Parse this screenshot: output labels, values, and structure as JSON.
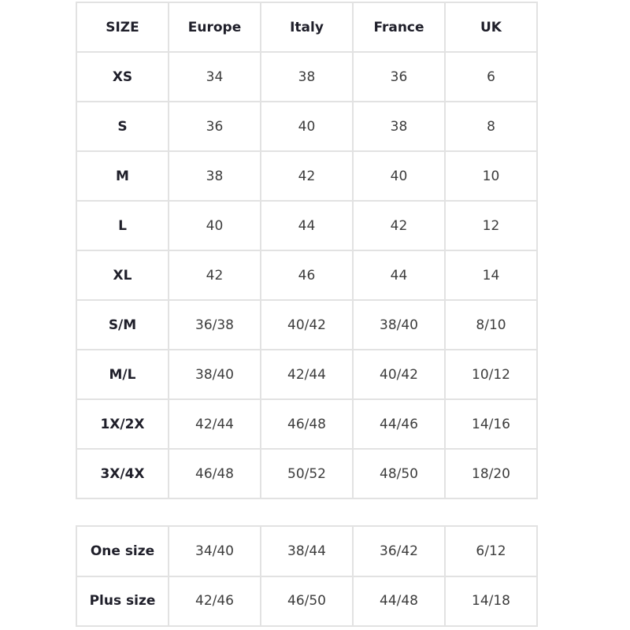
{
  "columns": [
    "SIZE",
    "Europe",
    "Italy",
    "France",
    "UK"
  ],
  "rows": [
    [
      "XS",
      "34",
      "38",
      "36",
      "6"
    ],
    [
      "S",
      "36",
      "40",
      "38",
      "8"
    ],
    [
      "M",
      "38",
      "42",
      "40",
      "10"
    ],
    [
      "L",
      "40",
      "44",
      "42",
      "12"
    ],
    [
      "XL",
      "42",
      "46",
      "44",
      "14"
    ],
    [
      "S/M",
      "36/38",
      "40/42",
      "38/40",
      "8/10"
    ],
    [
      "M/L",
      "38/40",
      "42/44",
      "40/42",
      "10/12"
    ],
    [
      "1X/2X",
      "42/44",
      "46/48",
      "44/46",
      "14/16"
    ],
    [
      "3X/4X",
      "46/48",
      "50/52",
      "48/50",
      "18/20"
    ]
  ],
  "extra_rows": [
    [
      "One size",
      "34/40",
      "38/44",
      "36/42",
      "6/12"
    ],
    [
      "Plus size",
      "42/46",
      "46/50",
      "44/48",
      "14/18"
    ]
  ]
}
